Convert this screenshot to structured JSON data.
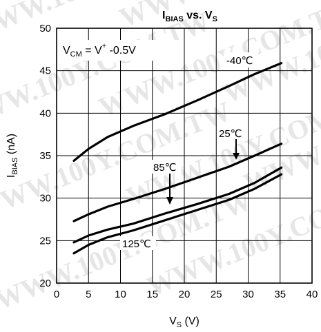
{
  "chart_data": {
    "type": "line",
    "title": {
      "main": "I",
      "main_sub": "BIAS",
      "mid": " vs. V",
      "mid_sub": "S"
    },
    "xlabel": {
      "main": "V",
      "sub": "S",
      "rest": " (V)"
    },
    "ylabel": {
      "main": "I",
      "sub": "BIAS",
      "rest": " (nA)"
    },
    "xlim": [
      0,
      40
    ],
    "ylim": [
      20,
      50
    ],
    "xticks": [
      0,
      5,
      10,
      15,
      20,
      25,
      30,
      35,
      40
    ],
    "yticks": [
      20,
      25,
      30,
      35,
      40,
      45,
      50
    ],
    "grid": true,
    "condition": {
      "a": "V",
      "a_sub": "CM",
      "b": " = V",
      "b_sup": "+",
      "c": " -0.5V"
    },
    "series": [
      {
        "name": "-40℃",
        "x": [
          2.7,
          5,
          8,
          12,
          17,
          22,
          27,
          31,
          35.2
        ],
        "y": [
          34.4,
          35.8,
          37.2,
          38.5,
          39.9,
          41.5,
          43.2,
          44.6,
          45.9
        ]
      },
      {
        "name": "25℃",
        "x": [
          2.7,
          5,
          8,
          12,
          17,
          22,
          27,
          31,
          35.2
        ],
        "y": [
          27.3,
          28.1,
          29.0,
          29.9,
          31.1,
          32.4,
          33.7,
          35.0,
          36.4
        ]
      },
      {
        "name": "85℃",
        "x": [
          2.7,
          5,
          8,
          12,
          17,
          22,
          27,
          31,
          35.2
        ],
        "y": [
          24.8,
          25.6,
          26.3,
          27.0,
          28.2,
          29.3,
          30.5,
          31.8,
          33.6
        ]
      },
      {
        "name": "125℃",
        "x": [
          2.7,
          5,
          8,
          12,
          17,
          22,
          27,
          31,
          35.2
        ],
        "y": [
          23.5,
          24.5,
          25.4,
          26.2,
          27.4,
          28.6,
          29.8,
          31.1,
          32.8
        ]
      }
    ],
    "annotations": [
      {
        "text": "-40℃",
        "series": "-40℃"
      },
      {
        "text": "25℃",
        "series": "25℃"
      },
      {
        "text": "85℃",
        "series": "85℃"
      },
      {
        "text": "125℃",
        "series": "125℃"
      }
    ]
  },
  "watermark": "WWW.100Y.COM.TW"
}
